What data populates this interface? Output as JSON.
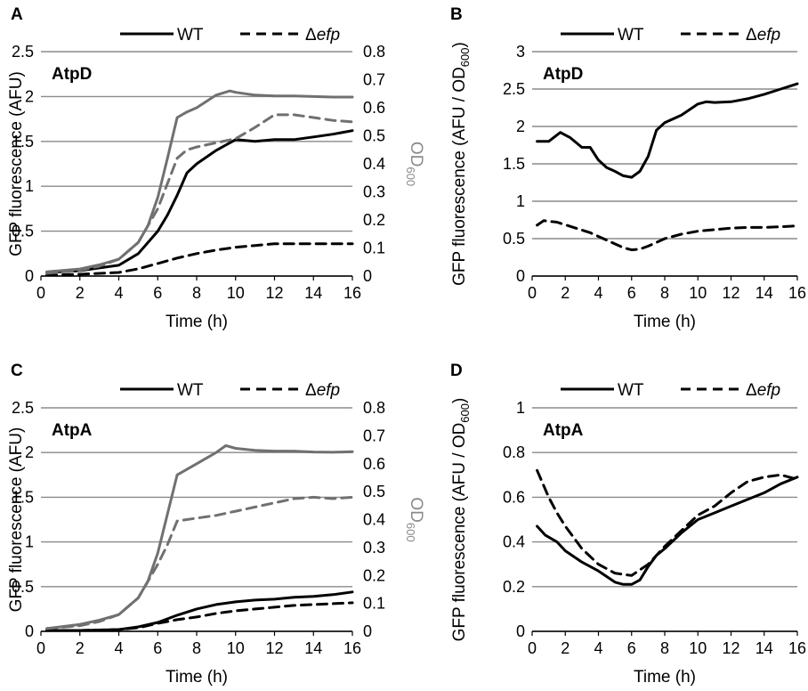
{
  "chart_data": [
    {
      "panel": "A",
      "title": "AtpD",
      "type": "line",
      "xlabel": "Time (h)",
      "ylabel": "GFP fluorescence (AFU)",
      "y2label": "OD600",
      "xlim": [
        0,
        16
      ],
      "ylim": [
        0,
        2.5
      ],
      "y2lim": [
        0,
        0.8
      ],
      "xticks": [
        "0",
        "2",
        "4",
        "6",
        "8",
        "10",
        "12",
        "14",
        "16"
      ],
      "yticks": [
        "0",
        "0.5",
        "1",
        "1.5",
        "2",
        "2.5"
      ],
      "y2ticks": [
        "0",
        "0.1",
        "0.2",
        "0.3",
        "0.4",
        "0.5",
        "0.6",
        "0.7",
        "0.8"
      ],
      "grid": "horizontal",
      "legend": [
        "WT",
        "Δefp"
      ],
      "series": [
        {
          "name": "WT",
          "axis": "left",
          "color": "#000000",
          "dash": false,
          "x": [
            0.3,
            2,
            3,
            4,
            5,
            6,
            6.5,
            7,
            7.5,
            8,
            9,
            10,
            11,
            12,
            13,
            14,
            15,
            16
          ],
          "y": [
            0.04,
            0.06,
            0.09,
            0.12,
            0.25,
            0.5,
            0.68,
            0.9,
            1.15,
            1.25,
            1.4,
            1.52,
            1.5,
            1.52,
            1.52,
            1.55,
            1.58,
            1.62
          ]
        },
        {
          "name": "Δefp",
          "axis": "left",
          "color": "#000000",
          "dash": true,
          "x": [
            0.3,
            2,
            4,
            5,
            6,
            7,
            8,
            9,
            10,
            11,
            12,
            13,
            14,
            15,
            16
          ],
          "y": [
            0.01,
            0.02,
            0.04,
            0.08,
            0.14,
            0.2,
            0.25,
            0.29,
            0.32,
            0.34,
            0.36,
            0.36,
            0.36,
            0.36,
            0.36
          ]
        },
        {
          "name": "WT",
          "axis": "right",
          "color": "#707070",
          "dash": false,
          "x": [
            0.3,
            2,
            3,
            4,
            5,
            5.5,
            6,
            6.5,
            7,
            7.5,
            8,
            9,
            9.7,
            10,
            11,
            12,
            13,
            14,
            15,
            16
          ],
          "y": [
            0.015,
            0.025,
            0.04,
            0.06,
            0.12,
            0.18,
            0.28,
            0.42,
            0.565,
            0.585,
            0.6,
            0.645,
            0.66,
            0.655,
            0.645,
            0.642,
            0.642,
            0.64,
            0.638,
            0.638
          ]
        },
        {
          "name": "Δefp",
          "axis": "right",
          "color": "#707070",
          "dash": true,
          "x": [
            0.3,
            2,
            3,
            4,
            5,
            6,
            6.5,
            7,
            7.5,
            8,
            9,
            10,
            11,
            12,
            13,
            14,
            15,
            16
          ],
          "y": [
            0.01,
            0.02,
            0.035,
            0.06,
            0.12,
            0.24,
            0.33,
            0.42,
            0.45,
            0.46,
            0.475,
            0.49,
            0.53,
            0.575,
            0.575,
            0.565,
            0.555,
            0.55
          ]
        }
      ]
    },
    {
      "panel": "B",
      "title": "AtpD",
      "type": "line",
      "xlabel": "Time (h)",
      "ylabel": "GFP fluorescence (AFU / OD600)",
      "xlim": [
        0,
        16
      ],
      "ylim": [
        0,
        3
      ],
      "xticks": [
        "0",
        "2",
        "4",
        "6",
        "8",
        "10",
        "12",
        "14",
        "16"
      ],
      "yticks": [
        "0",
        "0.5",
        "1",
        "1.5",
        "2",
        "2.5",
        "3"
      ],
      "grid": "horizontal",
      "legend": [
        "WT",
        "Δefp"
      ],
      "series": [
        {
          "name": "WT",
          "axis": "left",
          "color": "#000000",
          "dash": false,
          "x": [
            0.3,
            1,
            1.7,
            2.3,
            3,
            3.5,
            4,
            4.5,
            5,
            5.5,
            6,
            6.5,
            7,
            7.5,
            8,
            9,
            10,
            10.5,
            11,
            12,
            13,
            14,
            15,
            16
          ],
          "y": [
            1.8,
            1.8,
            1.92,
            1.85,
            1.72,
            1.72,
            1.55,
            1.45,
            1.4,
            1.34,
            1.32,
            1.4,
            1.6,
            1.95,
            2.05,
            2.15,
            2.3,
            2.33,
            2.32,
            2.33,
            2.37,
            2.43,
            2.5,
            2.57
          ]
        },
        {
          "name": "Δefp",
          "axis": "left",
          "color": "#000000",
          "dash": true,
          "x": [
            0.3,
            0.7,
            1.5,
            2.5,
            3.5,
            4.5,
            5.5,
            6,
            6.5,
            7,
            8,
            9,
            10,
            11,
            12,
            13,
            14,
            15,
            16
          ],
          "y": [
            0.68,
            0.74,
            0.72,
            0.65,
            0.58,
            0.48,
            0.38,
            0.35,
            0.36,
            0.4,
            0.5,
            0.56,
            0.6,
            0.62,
            0.64,
            0.65,
            0.65,
            0.66,
            0.67
          ]
        }
      ]
    },
    {
      "panel": "C",
      "title": "AtpA",
      "type": "line",
      "xlabel": "Time (h)",
      "ylabel": "GFP fluorescence (AFU)",
      "y2label": "OD600",
      "xlim": [
        0,
        16
      ],
      "ylim": [
        0,
        2.5
      ],
      "y2lim": [
        0,
        0.8
      ],
      "xticks": [
        "0",
        "2",
        "4",
        "6",
        "8",
        "10",
        "12",
        "14",
        "16"
      ],
      "yticks": [
        "0",
        "0.5",
        "1",
        "1.5",
        "2",
        "2.5"
      ],
      "y2ticks": [
        "0",
        "0.1",
        "0.2",
        "0.3",
        "0.4",
        "0.5",
        "0.6",
        "0.7",
        "0.8"
      ],
      "grid": "horizontal",
      "legend": [
        "WT",
        "Δefp"
      ],
      "series": [
        {
          "name": "WT",
          "axis": "left",
          "color": "#000000",
          "dash": false,
          "x": [
            0.3,
            2,
            4,
            5,
            6,
            7,
            8,
            9,
            10,
            11,
            12,
            13,
            14,
            15,
            16
          ],
          "y": [
            0.01,
            0.01,
            0.02,
            0.05,
            0.1,
            0.18,
            0.25,
            0.3,
            0.33,
            0.35,
            0.36,
            0.38,
            0.39,
            0.41,
            0.44
          ]
        },
        {
          "name": "Δefp",
          "axis": "left",
          "color": "#000000",
          "dash": true,
          "x": [
            0.3,
            2,
            4,
            5,
            6,
            7,
            8,
            9,
            10,
            11,
            12,
            13,
            14,
            15,
            16
          ],
          "y": [
            0.01,
            0.01,
            0.02,
            0.04,
            0.09,
            0.13,
            0.16,
            0.2,
            0.23,
            0.25,
            0.27,
            0.29,
            0.3,
            0.31,
            0.32
          ]
        },
        {
          "name": "WT",
          "axis": "right",
          "color": "#707070",
          "dash": false,
          "x": [
            0.3,
            2,
            3,
            4,
            5,
            5.5,
            6,
            6.5,
            7,
            8,
            9,
            9.5,
            10,
            11,
            12,
            13,
            14,
            15,
            16
          ],
          "y": [
            0.01,
            0.025,
            0.04,
            0.06,
            0.12,
            0.18,
            0.28,
            0.42,
            0.56,
            0.6,
            0.64,
            0.665,
            0.655,
            0.648,
            0.645,
            0.645,
            0.642,
            0.641,
            0.643
          ]
        },
        {
          "name": "Δefp",
          "axis": "right",
          "color": "#707070",
          "dash": true,
          "x": [
            0.3,
            2,
            3,
            4,
            5,
            6,
            6.5,
            7,
            8,
            9,
            10,
            11,
            12,
            13,
            14,
            15,
            16
          ],
          "y": [
            0.01,
            0.02,
            0.035,
            0.06,
            0.12,
            0.24,
            0.31,
            0.395,
            0.405,
            0.415,
            0.43,
            0.445,
            0.46,
            0.475,
            0.48,
            0.475,
            0.48
          ]
        }
      ]
    },
    {
      "panel": "D",
      "title": "AtpA",
      "type": "line",
      "xlabel": "Time (h)",
      "ylabel": "GFP fluorescence (AFU / OD600)",
      "xlim": [
        0,
        16
      ],
      "ylim": [
        0,
        1
      ],
      "xticks": [
        "0",
        "2",
        "4",
        "6",
        "8",
        "10",
        "12",
        "14",
        "16"
      ],
      "yticks": [
        "0",
        "0.2",
        "0.4",
        "0.6",
        "0.8",
        "1"
      ],
      "grid": "horizontal",
      "legend": [
        "WT",
        "Δefp"
      ],
      "series": [
        {
          "name": "WT",
          "axis": "left",
          "color": "#000000",
          "dash": false,
          "x": [
            0.3,
            0.8,
            1.5,
            2,
            3,
            4,
            5,
            5.5,
            6,
            6.5,
            7,
            7.5,
            8,
            9,
            10,
            11,
            12,
            13,
            14,
            15,
            16
          ],
          "y": [
            0.47,
            0.43,
            0.4,
            0.36,
            0.31,
            0.27,
            0.22,
            0.21,
            0.21,
            0.23,
            0.29,
            0.34,
            0.37,
            0.44,
            0.5,
            0.53,
            0.56,
            0.59,
            0.62,
            0.66,
            0.69
          ]
        },
        {
          "name": "Δefp",
          "axis": "left",
          "color": "#000000",
          "dash": true,
          "x": [
            0.3,
            1,
            1.5,
            2,
            3,
            4,
            5,
            6,
            7,
            8,
            9,
            10,
            11,
            12,
            13,
            14,
            15,
            16
          ],
          "y": [
            0.72,
            0.6,
            0.53,
            0.47,
            0.37,
            0.3,
            0.26,
            0.25,
            0.3,
            0.38,
            0.45,
            0.52,
            0.56,
            0.62,
            0.67,
            0.69,
            0.7,
            0.68
          ]
        }
      ]
    }
  ],
  "legend": {
    "wt": "WT",
    "delta": "Δ",
    "efp": "efp"
  },
  "panel_letters": [
    "A",
    "B",
    "C",
    "D"
  ],
  "od_label": {
    "main": "OD",
    "sub": "600"
  },
  "ylabel_ratio": {
    "main": "GFP fluorescence (AFU / OD",
    "sub": "600",
    "close": ")"
  }
}
